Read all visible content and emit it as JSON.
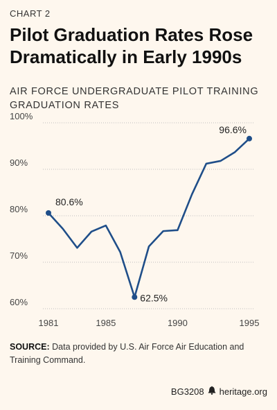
{
  "header": {
    "label": "CHART 2",
    "title": "Pilot Graduation Rates Rose Dramatically in Early 1990s",
    "subtitle": "AIR FORCE UNDERGRADUATE PILOT TRAINING GRADUATION RATES"
  },
  "chart_data": {
    "type": "line",
    "title": "Pilot Graduation Rates Rose Dramatically in Early 1990s",
    "subtitle": "AIR FORCE UNDERGRADUATE PILOT TRAINING GRADUATION RATES",
    "x": [
      1981,
      1982,
      1983,
      1984,
      1985,
      1986,
      1987,
      1988,
      1989,
      1990,
      1991,
      1992,
      1993,
      1994,
      1995
    ],
    "values": [
      80.6,
      77.2,
      73.1,
      76.6,
      77.9,
      72.2,
      62.5,
      73.4,
      76.7,
      76.9,
      84.6,
      91.2,
      91.8,
      93.7,
      96.6
    ],
    "xlim": [
      1981,
      1995
    ],
    "ylim": [
      60,
      100
    ],
    "x_ticks": [
      "1981",
      "1985",
      "1990",
      "1995"
    ],
    "y_ticks": [
      "60%",
      "70%",
      "80%",
      "90%",
      "100%"
    ],
    "grid": true,
    "line_color": "#1f4e89",
    "annotations": [
      {
        "x": 1981,
        "y": 80.6,
        "text": "80.6%"
      },
      {
        "x": 1987,
        "y": 62.5,
        "text": "62.5%"
      },
      {
        "x": 1995,
        "y": 96.6,
        "text": "96.6%"
      }
    ]
  },
  "source": {
    "label": "SOURCE:",
    "text": " Data provided by U.S. Air Force Air Education and Training Command."
  },
  "footer": {
    "code": "BG3208",
    "site": "heritage.org"
  }
}
